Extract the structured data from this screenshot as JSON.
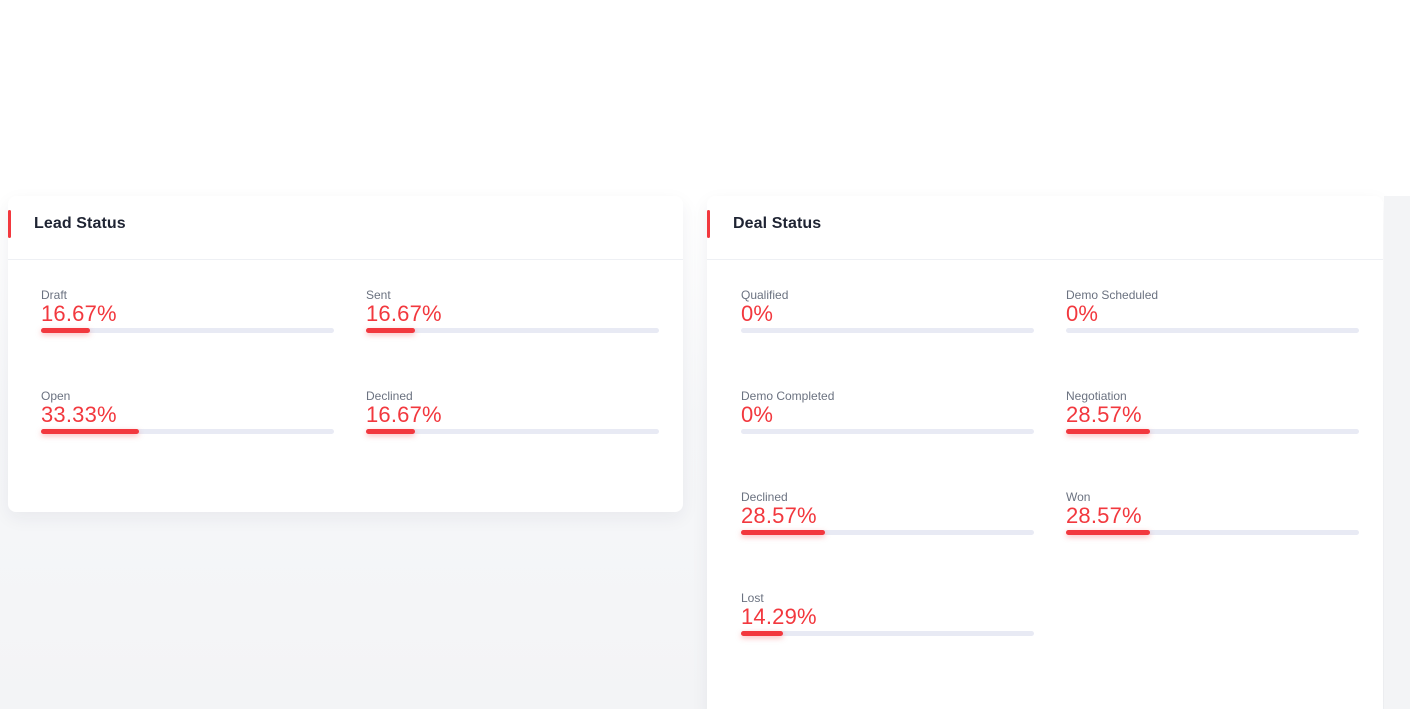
{
  "colors": {
    "accent": "#f2383e",
    "track": "#e8eaf4",
    "title": "#1f2433",
    "label": "#6b7280"
  },
  "lead_status": {
    "title": "Lead Status",
    "items": [
      {
        "label": "Draft",
        "value": "16.67%",
        "percent": 16.67
      },
      {
        "label": "Sent",
        "value": "16.67%",
        "percent": 16.67
      },
      {
        "label": "Open",
        "value": "33.33%",
        "percent": 33.33
      },
      {
        "label": "Declined",
        "value": "16.67%",
        "percent": 16.67
      }
    ]
  },
  "deal_status": {
    "title": "Deal Status",
    "items": [
      {
        "label": "Qualified",
        "value": "0%",
        "percent": 0
      },
      {
        "label": "Demo Scheduled",
        "value": "0%",
        "percent": 0
      },
      {
        "label": "Demo Completed",
        "value": "0%",
        "percent": 0
      },
      {
        "label": "Negotiation",
        "value": "28.57%",
        "percent": 28.57
      },
      {
        "label": "Declined",
        "value": "28.57%",
        "percent": 28.57
      },
      {
        "label": "Won",
        "value": "28.57%",
        "percent": 28.57
      },
      {
        "label": "Lost",
        "value": "14.29%",
        "percent": 14.29
      }
    ]
  }
}
